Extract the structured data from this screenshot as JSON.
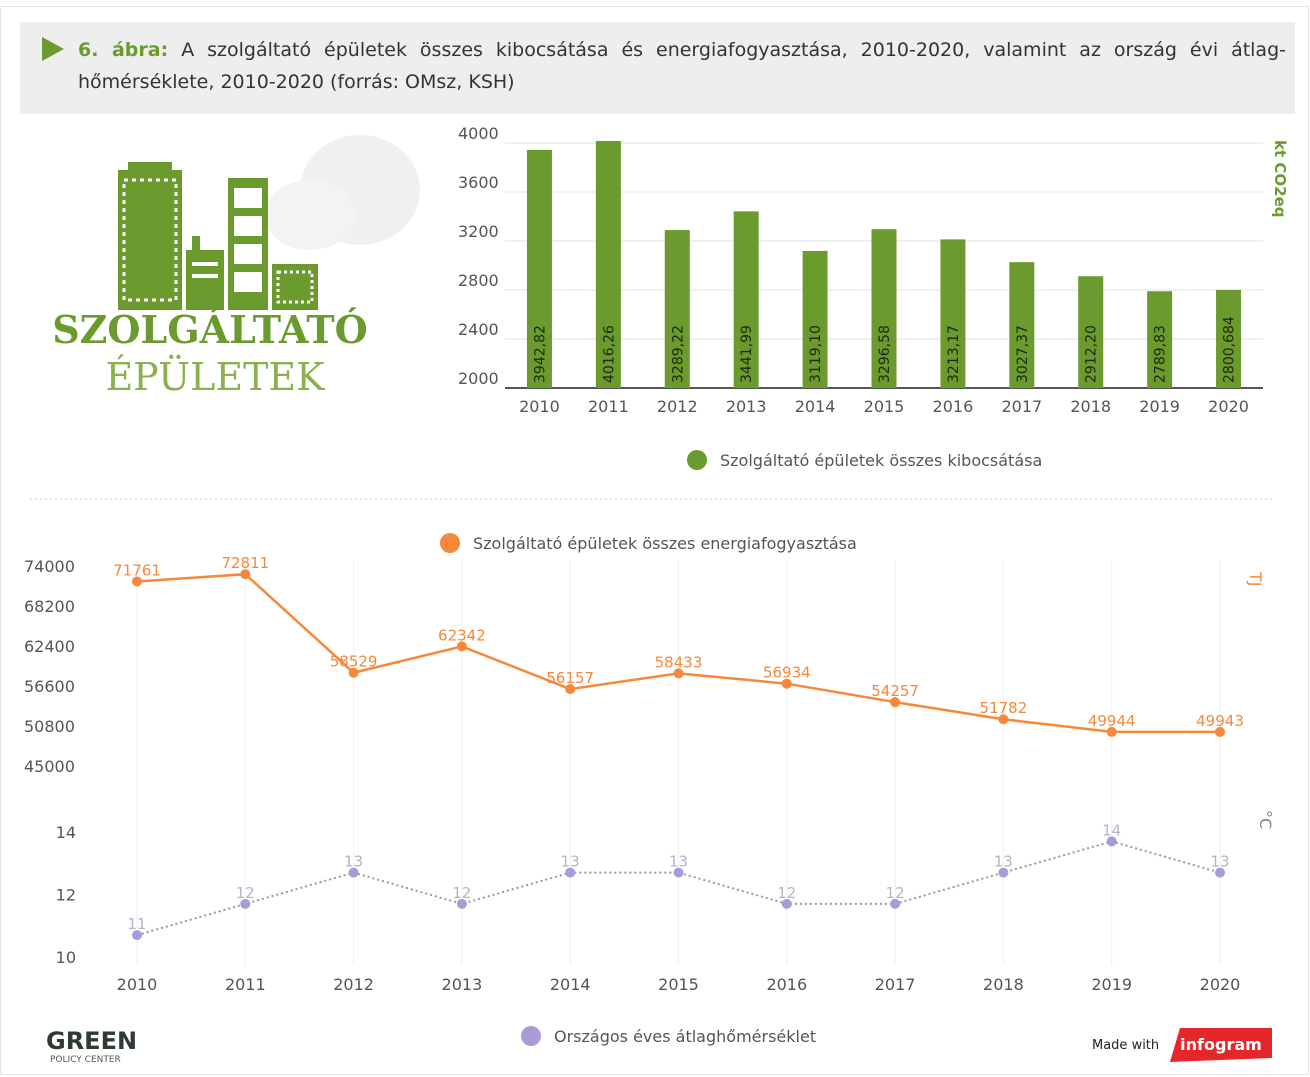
{
  "header": {
    "label": "6. ábra:",
    "title": "A szolgáltató épületek összes kibocsátása és energiafogyasztása, 2010-2020, valamint az ország évi átlag-hőmérséklete, 2010-2020 (forrás: OMsz, KSH)"
  },
  "logo": {
    "line1": "SZOLGÁLTATÓ",
    "line2": "ÉPÜLETEK"
  },
  "footer": {
    "brand": "GREEN",
    "brand_sub": "POLICY CENTER",
    "made_with": "Made with",
    "tool": "infogram"
  },
  "chart_data": [
    {
      "type": "bar",
      "categories": [
        "2010",
        "2011",
        "2012",
        "2013",
        "2014",
        "2015",
        "2016",
        "2017",
        "2018",
        "2019",
        "2020"
      ],
      "series": [
        {
          "name": "Szolgáltató épületek összes kibocsátása",
          "color": "#6b9a2f",
          "values": [
            3942.82,
            4016.26,
            3289.22,
            3441.99,
            3119.1,
            3296.58,
            3213.17,
            3027.37,
            2912.2,
            2789.83,
            2800.684
          ],
          "value_labels": [
            "3942,82",
            "4016,26",
            "3289,22",
            "3441,99",
            "3119,10",
            "3296,58",
            "3213,17",
            "3027,37",
            "2912,20",
            "2789,83",
            "2800,684"
          ]
        }
      ],
      "ylim": [
        2000,
        4000
      ],
      "yticks": [
        2000,
        2400,
        2800,
        3200,
        3600,
        4000
      ],
      "y_label": "kt CO2eq",
      "grid": true
    },
    {
      "type": "line",
      "categories": [
        "2010",
        "2011",
        "2012",
        "2013",
        "2014",
        "2015",
        "2016",
        "2017",
        "2018",
        "2019",
        "2020"
      ],
      "series": [
        {
          "name": "Szolgáltató épületek összes energiafogyasztása",
          "color": "#f5883a",
          "values": [
            71761,
            72811,
            58529,
            62342,
            56157,
            58433,
            56934,
            54257,
            51782,
            49944,
            49943
          ]
        },
        {
          "name": "Országos éves átlaghőmérséklet",
          "color": "#a99bd6",
          "axis": "y2",
          "line_style": "dotted",
          "values": [
            10.7,
            11.7,
            12.7,
            11.7,
            12.7,
            12.7,
            11.7,
            11.7,
            12.7,
            13.7,
            12.7
          ],
          "value_labels": [
            "11",
            "12",
            "13",
            "12",
            "13",
            "13",
            "12",
            "12",
            "13",
            "14",
            "13"
          ]
        }
      ],
      "ylim": [
        45000,
        74000
      ],
      "yticks": [
        45000,
        50800,
        56600,
        62400,
        68200,
        74000
      ],
      "y2lim": [
        10,
        14
      ],
      "y2ticks": [
        10,
        12,
        14
      ],
      "y_label": "TJ",
      "y2_label": "°C",
      "grid_x": true
    }
  ]
}
